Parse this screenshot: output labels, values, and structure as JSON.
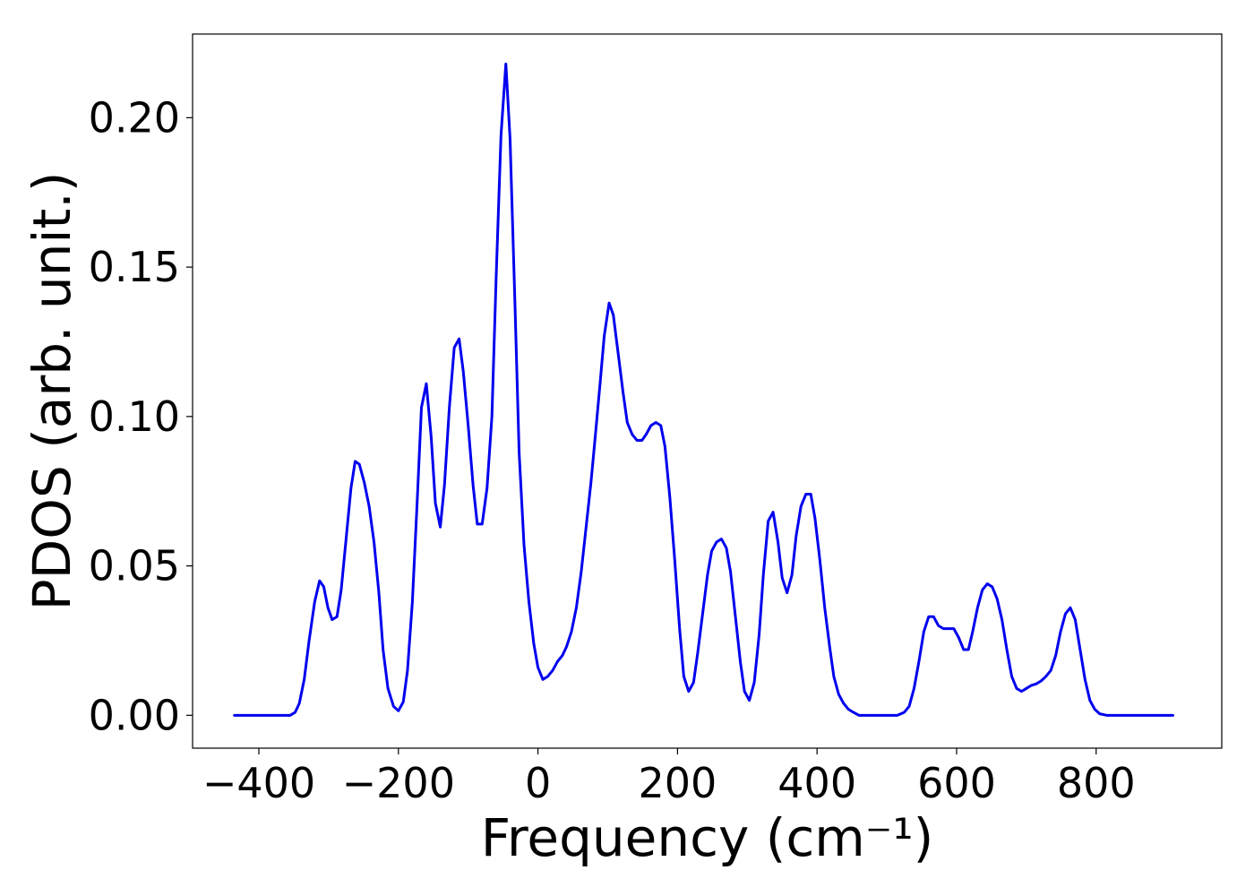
{
  "chart_data": {
    "type": "line",
    "title": "",
    "xlabel": "Frequency (cm⁻¹)",
    "ylabel": "PDOS (arb. unit.)",
    "xlim": [
      -495,
      980
    ],
    "ylim": [
      -0.011,
      0.228
    ],
    "grid": false,
    "xticks": [
      -400,
      -200,
      0,
      200,
      400,
      600,
      800
    ],
    "xtick_labels": [
      "−400",
      "−200",
      "0",
      "200",
      "400",
      "600",
      "800"
    ],
    "yticks": [
      0.0,
      0.05,
      0.1,
      0.15,
      0.2
    ],
    "ytick_labels": [
      "0.00",
      "0.05",
      "0.10",
      "0.15",
      "0.20"
    ],
    "colors": {
      "line": "#0000ee"
    },
    "series": [
      {
        "x": [
          -435,
          -355,
          -348,
          -342,
          -335,
          -328,
          -320,
          -313,
          -307,
          -301,
          -295,
          -288,
          -282,
          -275,
          -268,
          -262,
          -256,
          -249,
          -242,
          -235,
          -228,
          -222,
          -215,
          -207,
          -200,
          -193,
          -187,
          -180,
          -173,
          -167,
          -160,
          -153,
          -147,
          -140,
          -134,
          -127,
          -120,
          -113,
          -107,
          -100,
          -93,
          -87,
          -80,
          -73,
          -66,
          -60,
          -53,
          -46,
          -40,
          -33,
          -27,
          -20,
          -13,
          -6,
          0,
          7,
          14,
          21,
          28,
          35,
          41,
          48,
          55,
          62,
          69,
          76,
          82,
          89,
          95,
          102,
          108,
          115,
          122,
          128,
          135,
          142,
          149,
          155,
          162,
          169,
          176,
          182,
          189,
          196,
          203,
          209,
          216,
          223,
          229,
          236,
          243,
          249,
          256,
          263,
          270,
          276,
          283,
          290,
          296,
          303,
          310,
          317,
          323,
          330,
          337,
          344,
          350,
          357,
          364,
          370,
          377,
          384,
          391,
          397,
          404,
          411,
          418,
          424,
          431,
          438,
          445,
          452,
          460,
          468,
          475,
          485,
          495,
          505,
          515,
          525,
          532,
          539,
          546,
          553,
          560,
          567,
          574,
          581,
          588,
          596,
          603,
          610,
          617,
          623,
          630,
          637,
          644,
          651,
          658,
          665,
          672,
          679,
          686,
          693,
          700,
          707,
          714,
          721,
          728,
          735,
          742,
          749,
          756,
          763,
          770,
          777,
          784,
          791,
          798,
          805,
          815,
          830,
          850,
          880,
          910
        ],
        "y": [
          0,
          0,
          0.001,
          0.004,
          0.012,
          0.025,
          0.038,
          0.045,
          0.043,
          0.036,
          0.032,
          0.033,
          0.042,
          0.059,
          0.076,
          0.085,
          0.084,
          0.078,
          0.07,
          0.058,
          0.041,
          0.022,
          0.009,
          0.003,
          0.0015,
          0.0045,
          0.015,
          0.038,
          0.072,
          0.103,
          0.111,
          0.093,
          0.071,
          0.063,
          0.077,
          0.103,
          0.123,
          0.126,
          0.115,
          0.097,
          0.077,
          0.064,
          0.064,
          0.076,
          0.1,
          0.146,
          0.194,
          0.218,
          0.193,
          0.138,
          0.088,
          0.057,
          0.038,
          0.024,
          0.016,
          0.012,
          0.013,
          0.015,
          0.018,
          0.02,
          0.023,
          0.028,
          0.036,
          0.048,
          0.063,
          0.078,
          0.093,
          0.111,
          0.127,
          0.138,
          0.134,
          0.121,
          0.108,
          0.098,
          0.094,
          0.092,
          0.092,
          0.094,
          0.097,
          0.098,
          0.097,
          0.09,
          0.073,
          0.052,
          0.029,
          0.013,
          0.008,
          0.011,
          0.021,
          0.034,
          0.047,
          0.055,
          0.058,
          0.059,
          0.056,
          0.048,
          0.033,
          0.018,
          0.008,
          0.005,
          0.011,
          0.027,
          0.047,
          0.065,
          0.068,
          0.058,
          0.046,
          0.041,
          0.047,
          0.06,
          0.07,
          0.074,
          0.074,
          0.066,
          0.052,
          0.036,
          0.023,
          0.013,
          0.007,
          0.004,
          0.002,
          0.001,
          0,
          0,
          0,
          0,
          0,
          0,
          0,
          0.001,
          0.003,
          0.009,
          0.018,
          0.028,
          0.033,
          0.033,
          0.03,
          0.029,
          0.029,
          0.029,
          0.026,
          0.022,
          0.022,
          0.028,
          0.036,
          0.042,
          0.044,
          0.043,
          0.039,
          0.032,
          0.022,
          0.013,
          0.009,
          0.008,
          0.009,
          0.01,
          0.0105,
          0.0115,
          0.013,
          0.015,
          0.02,
          0.028,
          0.034,
          0.036,
          0.032,
          0.022,
          0.012,
          0.005,
          0.002,
          0.0005,
          0,
          0,
          0,
          0,
          0
        ]
      }
    ]
  }
}
